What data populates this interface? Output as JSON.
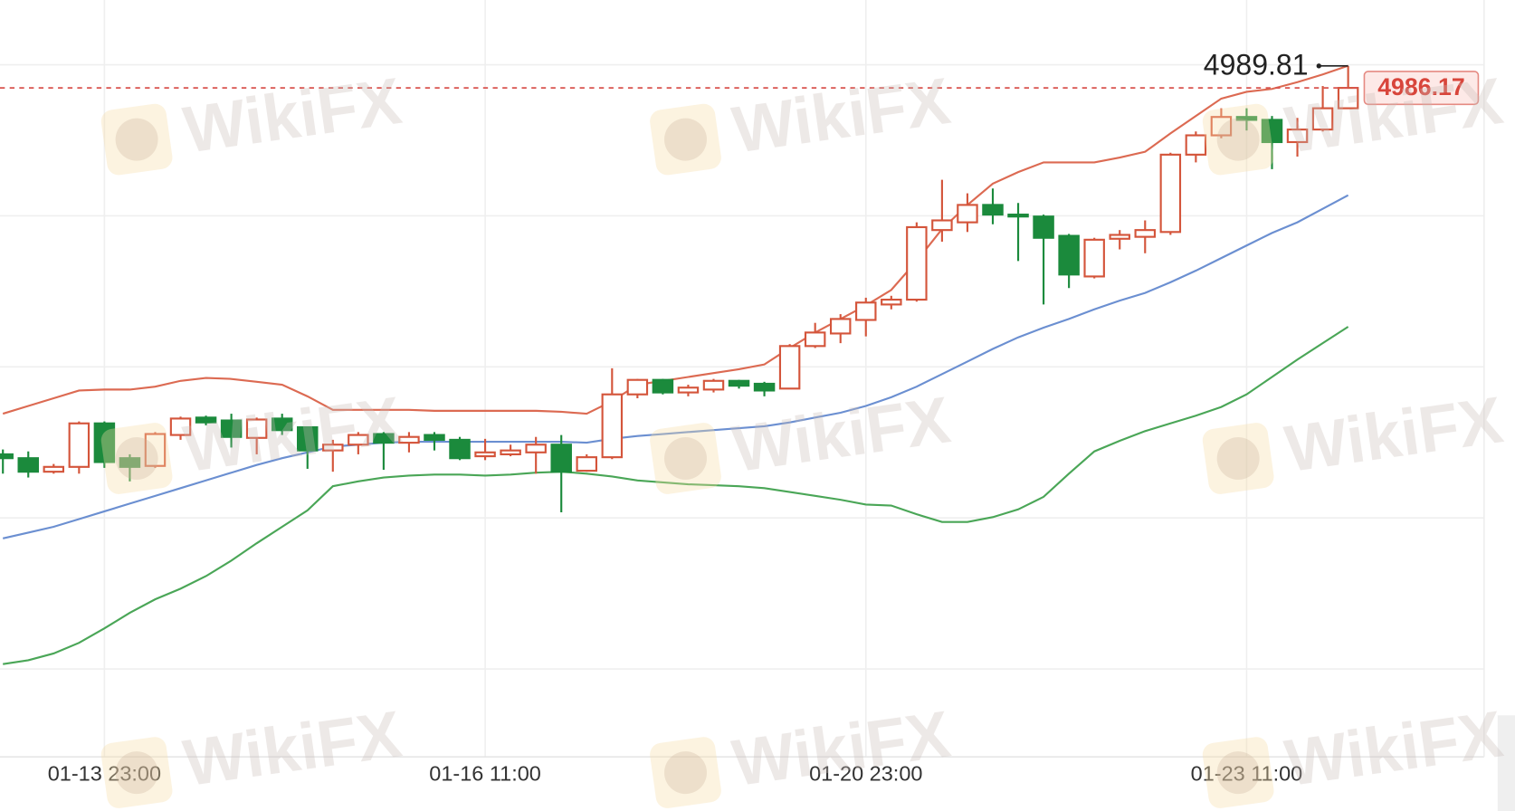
{
  "chart_data": {
    "type": "candlestick",
    "categories": [
      null,
      null,
      null,
      null,
      "01-13 23:00",
      null,
      null,
      null,
      null,
      null,
      null,
      null,
      null,
      null,
      null,
      null,
      null,
      null,
      null,
      "01-16 11:00",
      null,
      null,
      null,
      null,
      null,
      null,
      null,
      null,
      null,
      null,
      null,
      null,
      null,
      null,
      "01-20 23:00",
      null,
      null,
      null,
      null,
      null,
      null,
      null,
      null,
      null,
      null,
      null,
      null,
      null,
      null,
      "01-23 11:00",
      null,
      null,
      null,
      null
    ],
    "open": [
      4925.52,
      4924.88,
      4922.64,
      4923.44,
      4930.64,
      4924.88,
      4923.6,
      4928.72,
      4931.6,
      4931.12,
      4928.24,
      4931.44,
      4930.0,
      4926.16,
      4927.12,
      4928.88,
      4927.44,
      4928.72,
      4927.92,
      4925.2,
      4925.52,
      4925.84,
      4927.12,
      4922.8,
      4925.04,
      4935.44,
      4937.84,
      4935.76,
      4936.24,
      4937.68,
      4937.2,
      4936.4,
      4943.44,
      4945.52,
      4947.76,
      4950.32,
      4951.12,
      4962.64,
      4963.92,
      4966.8,
      4965.2,
      4964.88,
      4961.68,
      4954.96,
      4961.2,
      4961.52,
      4962.32,
      4975.12,
      4978.32,
      4981.36,
      4980.88,
      4977.2,
      4979.28,
      4982.8
    ],
    "high": [
      4926.32,
      4926.0,
      4923.92,
      4930.96,
      4930.96,
      4925.52,
      4929.2,
      4931.76,
      4931.92,
      4932.24,
      4931.6,
      4932.24,
      4930.0,
      4927.92,
      4929.2,
      4929.2,
      4929.2,
      4929.2,
      4928.4,
      4928.08,
      4927.12,
      4928.4,
      4928.72,
      4925.52,
      4939.76,
      4938.0,
      4938.0,
      4937.04,
      4938.0,
      4937.84,
      4937.52,
      4943.76,
      4947.28,
      4948.72,
      4951.44,
      4951.76,
      4963.92,
      4970.96,
      4968.72,
      4969.52,
      4967.12,
      4965.2,
      4962.0,
      4961.36,
      4962.64,
      4964.24,
      4975.44,
      4978.96,
      4982.8,
      4982.8,
      4981.52,
      4981.2,
      4986.48,
      4989.81
    ],
    "low": [
      4922.32,
      4921.68,
      4922.32,
      4922.32,
      4923.28,
      4921.04,
      4923.28,
      4927.92,
      4930.32,
      4926.64,
      4925.52,
      4928.72,
      4923.12,
      4922.64,
      4925.52,
      4922.96,
      4925.84,
      4926.16,
      4924.56,
      4924.56,
      4925.2,
      4922.32,
      4915.92,
      4922.64,
      4924.72,
      4934.8,
      4935.44,
      4935.12,
      4935.76,
      4936.4,
      4935.12,
      4936.4,
      4943.12,
      4943.92,
      4945.04,
      4949.52,
      4950.8,
      4960.72,
      4962.32,
      4963.6,
      4957.52,
      4950.32,
      4953.04,
      4954.64,
      4959.44,
      4958.8,
      4961.84,
      4973.84,
      4977.84,
      4979.12,
      4972.72,
      4974.8,
      4978.96,
      4982.8
    ],
    "close": [
      4924.88,
      4922.64,
      4923.44,
      4930.64,
      4924.24,
      4923.44,
      4928.88,
      4931.44,
      4930.8,
      4928.4,
      4931.28,
      4929.52,
      4926.16,
      4927.12,
      4928.72,
      4927.44,
      4928.4,
      4927.92,
      4924.88,
      4925.84,
      4926.16,
      4927.12,
      4922.64,
      4925.04,
      4935.44,
      4937.84,
      4935.76,
      4936.56,
      4937.68,
      4936.88,
      4936.08,
      4943.44,
      4945.68,
      4947.92,
      4950.64,
      4951.12,
      4963.12,
      4964.24,
      4966.8,
      4965.2,
      4964.88,
      4961.36,
      4955.28,
      4961.04,
      4961.84,
      4962.64,
      4975.12,
      4978.32,
      4981.36,
      4980.88,
      4977.2,
      4979.28,
      4982.8,
      4986.17
    ],
    "up_color": "#d4553b",
    "down_color": "#1b8a3c",
    "bands": [
      {
        "color": "#dc6a52",
        "values": [
          4932.24,
          4933.52,
          4934.8,
          4936.08,
          4936.24,
          4936.24,
          4936.72,
          4937.68,
          4938.16,
          4938.0,
          4937.52,
          4937.04,
          4935.12,
          4932.88,
          4932.88,
          4932.88,
          4932.88,
          4932.72,
          4932.72,
          4932.72,
          4932.72,
          4932.72,
          4932.56,
          4932.24,
          4934.32,
          4937.04,
          4937.68,
          4938.32,
          4938.96,
          4939.6,
          4940.4,
          4943.12,
          4945.68,
          4947.92,
          4950.16,
          4952.72,
          4957.52,
          4962.8,
          4966.8,
          4970.32,
          4972.24,
          4973.84,
          4973.84,
          4973.84,
          4974.64,
          4975.6,
          4978.64,
          4981.52,
          4984.4,
          4985.52,
          4986.0,
          4987.12,
          4988.4,
          4989.84
        ]
      },
      {
        "color": "#6b8fd1",
        "values": [
          4911.6,
          4912.56,
          4913.52,
          4914.8,
          4916.08,
          4917.36,
          4918.64,
          4919.92,
          4921.2,
          4922.48,
          4923.76,
          4924.88,
          4925.84,
          4926.8,
          4927.12,
          4927.44,
          4927.6,
          4927.6,
          4927.6,
          4927.6,
          4927.6,
          4927.6,
          4927.6,
          4927.44,
          4928.08,
          4928.56,
          4928.88,
          4929.2,
          4929.52,
          4929.84,
          4930.16,
          4930.8,
          4931.6,
          4932.4,
          4933.52,
          4934.96,
          4936.72,
          4938.8,
          4940.88,
          4942.96,
          4944.88,
          4946.48,
          4947.92,
          4949.52,
          4950.96,
          4952.24,
          4954.0,
          4955.92,
          4958.0,
          4960.08,
          4962.16,
          4963.92,
          4966.16,
          4968.4
        ]
      },
      {
        "color": "#4aa657",
        "values": [
          4890.8,
          4891.44,
          4892.56,
          4894.32,
          4896.72,
          4899.28,
          4901.52,
          4903.28,
          4905.36,
          4907.92,
          4910.8,
          4913.52,
          4916.24,
          4920.24,
          4921.04,
          4921.68,
          4922.0,
          4922.16,
          4922.16,
          4922.0,
          4922.16,
          4922.48,
          4922.64,
          4922.32,
          4921.84,
          4921.2,
          4920.88,
          4920.56,
          4920.4,
          4920.24,
          4919.92,
          4919.28,
          4918.64,
          4918.0,
          4917.2,
          4917.04,
          4915.6,
          4914.32,
          4914.32,
          4915.12,
          4916.4,
          4918.48,
          4922.32,
          4926.0,
          4927.76,
          4929.36,
          4930.64,
          4931.92,
          4933.36,
          4935.44,
          4938.32,
          4941.2,
          4943.92,
          4946.64
        ]
      }
    ],
    "ylim": [
      4890,
      4990
    ],
    "grid": true
  },
  "watermark": "WikiFX"
}
